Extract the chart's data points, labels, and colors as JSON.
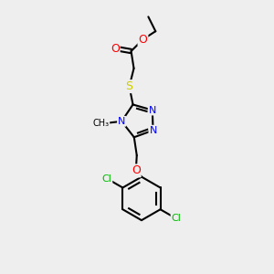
{
  "background_color": "#eeeeee",
  "bond_color": "#000000",
  "atom_colors": {
    "O": "#ff0000",
    "S": "#cccc00",
    "N": "#0000ff",
    "Cl": "#00bb00",
    "C": "#000000"
  },
  "figsize": [
    3.0,
    3.0
  ],
  "dpi": 100
}
